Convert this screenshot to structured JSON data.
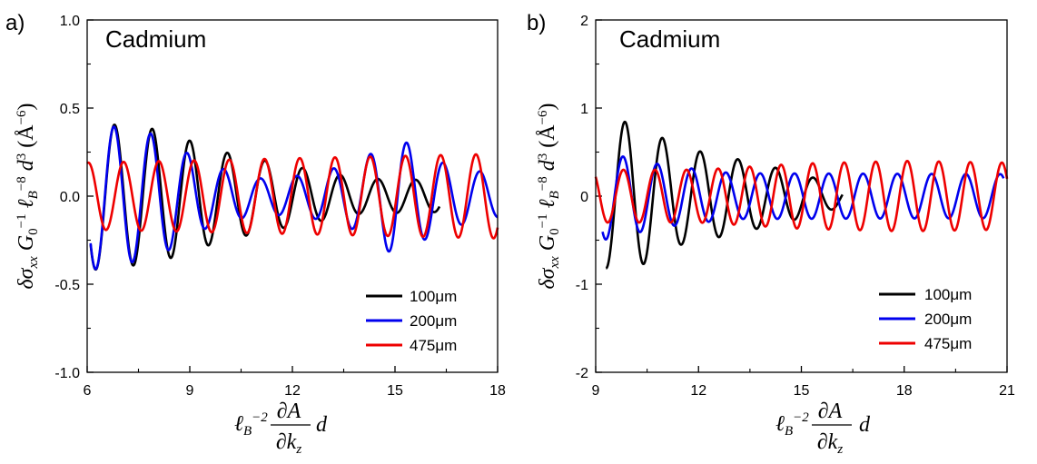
{
  "chart_data": [
    {
      "type": "line",
      "panel_label": "a)",
      "title": "Cadmium",
      "xlim": [
        6,
        18
      ],
      "ylim": [
        -1.0,
        1.0
      ],
      "xticks": [
        6,
        9,
        12,
        15,
        18
      ],
      "xtick_labels": [
        "6",
        "9",
        "12",
        "15",
        "18"
      ],
      "yticks": [
        -1.0,
        -0.5,
        0.0,
        0.5,
        1.0
      ],
      "ytick_labels": [
        "-1.0",
        "-0.5",
        "0.0",
        "0.5",
        "1.0"
      ],
      "legend_position": "bottom-right",
      "ylabel": "δσxx G0−1 ℓB−8 d3 (Å−6)",
      "xlabel": "ℓB−2 ∂A/∂kz d",
      "series": [
        {
          "name": "100μm",
          "color": "#000000",
          "period": 1.1,
          "phase": 6.25,
          "x_start": 6.1,
          "x_end": 16.3,
          "envelope": [
            [
              6.1,
              0.42
            ],
            [
              8.0,
              0.38
            ],
            [
              10.0,
              0.25
            ],
            [
              12.0,
              0.17
            ],
            [
              14.0,
              0.1
            ],
            [
              16.3,
              0.09
            ]
          ]
        },
        {
          "name": "200μm",
          "color": "#0000ee",
          "period": 1.07,
          "phase": 6.25,
          "x_start": 6.1,
          "x_end": 18.0,
          "envelope": [
            [
              6.1,
              0.42
            ],
            [
              8.0,
              0.35
            ],
            [
              9.5,
              0.18
            ],
            [
              11.0,
              0.1
            ],
            [
              12.5,
              0.12
            ],
            [
              14.0,
              0.2
            ],
            [
              15.0,
              0.34
            ],
            [
              16.5,
              0.18
            ],
            [
              18.0,
              0.12
            ]
          ]
        },
        {
          "name": "475μm",
          "color": "#ee0000",
          "period": 1.03,
          "phase": 6.55,
          "x_start": 6.0,
          "x_end": 18.0,
          "envelope": [
            [
              6.0,
              0.19
            ],
            [
              18.0,
              0.24
            ]
          ]
        }
      ]
    },
    {
      "type": "line",
      "panel_label": "b)",
      "title": "Cadmium",
      "xlim": [
        9,
        21
      ],
      "ylim": [
        -2,
        2
      ],
      "xticks": [
        9,
        12,
        15,
        18,
        21
      ],
      "xtick_labels": [
        "9",
        "12",
        "15",
        "18",
        "21"
      ],
      "yticks": [
        -2,
        -1,
        0,
        1,
        2
      ],
      "ytick_labels": [
        "-2",
        "-1",
        "0",
        "1",
        "2"
      ],
      "legend_position": "bottom-right",
      "ylabel": "δσxx G0−1 ℓB−8 d3 (Å−6)",
      "xlabel": "ℓB−2 ∂A/∂kz d",
      "series": [
        {
          "name": "100μm",
          "color": "#000000",
          "period": 1.1,
          "phase": 9.3,
          "x_start": 9.3,
          "x_end": 16.2,
          "envelope": [
            [
              9.3,
              0.82
            ],
            [
              10.0,
              0.85
            ],
            [
              11.5,
              0.55
            ],
            [
              12.8,
              0.45
            ],
            [
              14.5,
              0.3
            ],
            [
              16.2,
              0.12
            ]
          ]
        },
        {
          "name": "200μm",
          "color": "#0000ee",
          "period": 1.0,
          "phase": 9.3,
          "x_start": 9.2,
          "x_end": 20.9,
          "envelope": [
            [
              9.2,
              0.5
            ],
            [
              11.0,
              0.35
            ],
            [
              13.0,
              0.26
            ],
            [
              21.0,
              0.25
            ]
          ]
        },
        {
          "name": "475μm",
          "color": "#ee0000",
          "period": 0.92,
          "phase": 9.35,
          "x_start": 9.0,
          "x_end": 21.0,
          "envelope": [
            [
              9.0,
              0.3
            ],
            [
              12.0,
              0.3
            ],
            [
              15.0,
              0.37
            ],
            [
              18.0,
              0.4
            ],
            [
              21.0,
              0.38
            ]
          ]
        }
      ]
    }
  ]
}
